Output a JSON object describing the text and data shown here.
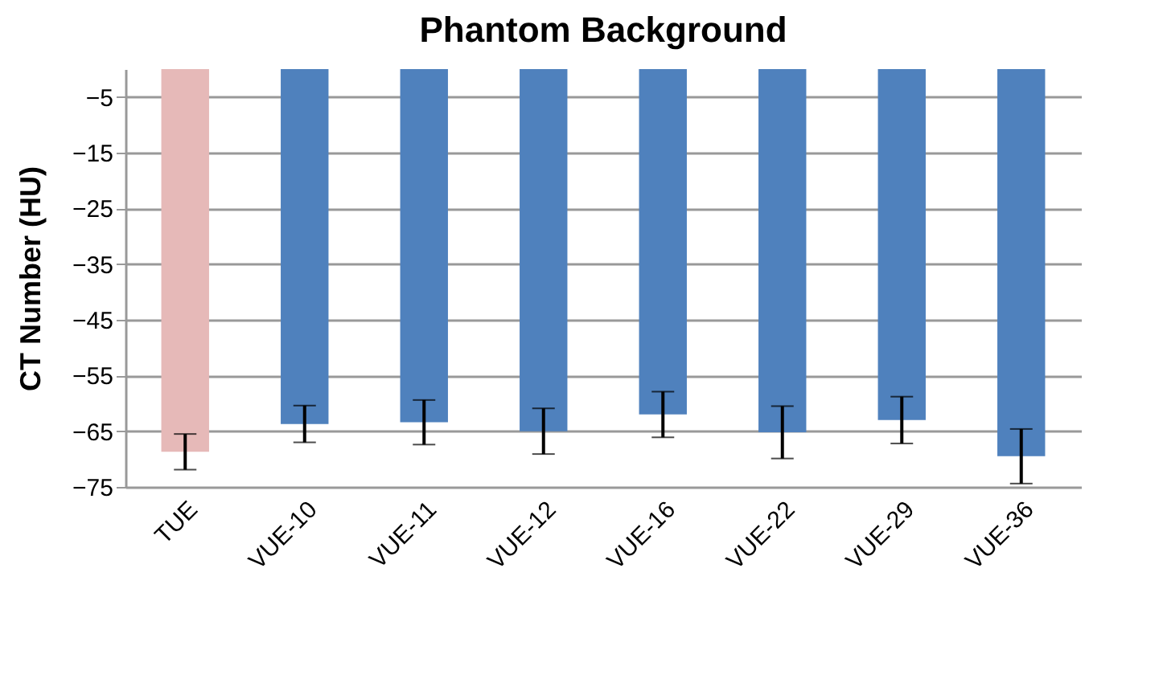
{
  "chart_data": {
    "type": "bar",
    "title": "Phantom Background",
    "ylabel": "CT Number (HU)",
    "categories": [
      "TUE",
      "VUE-10",
      "VUE-11",
      "VUE-12",
      "VUE-16",
      "VUE-22",
      "VUE-29",
      "VUE-36"
    ],
    "values": [
      -68.7,
      -63.7,
      -63.4,
      -65.0,
      -62.0,
      -65.2,
      -63.0,
      -69.5
    ],
    "errors": [
      3.2,
      3.3,
      4.0,
      4.1,
      4.1,
      4.7,
      4.2,
      4.9
    ],
    "colors": [
      "#e6b9b8",
      "#4f81bd",
      "#4f81bd",
      "#4f81bd",
      "#4f81bd",
      "#4f81bd",
      "#4f81bd",
      "#4f81bd"
    ],
    "ylim": [
      -75,
      0
    ],
    "yticks": [
      -5,
      -15,
      -25,
      -35,
      -45,
      -55,
      -65,
      -75
    ],
    "grid": "y"
  }
}
